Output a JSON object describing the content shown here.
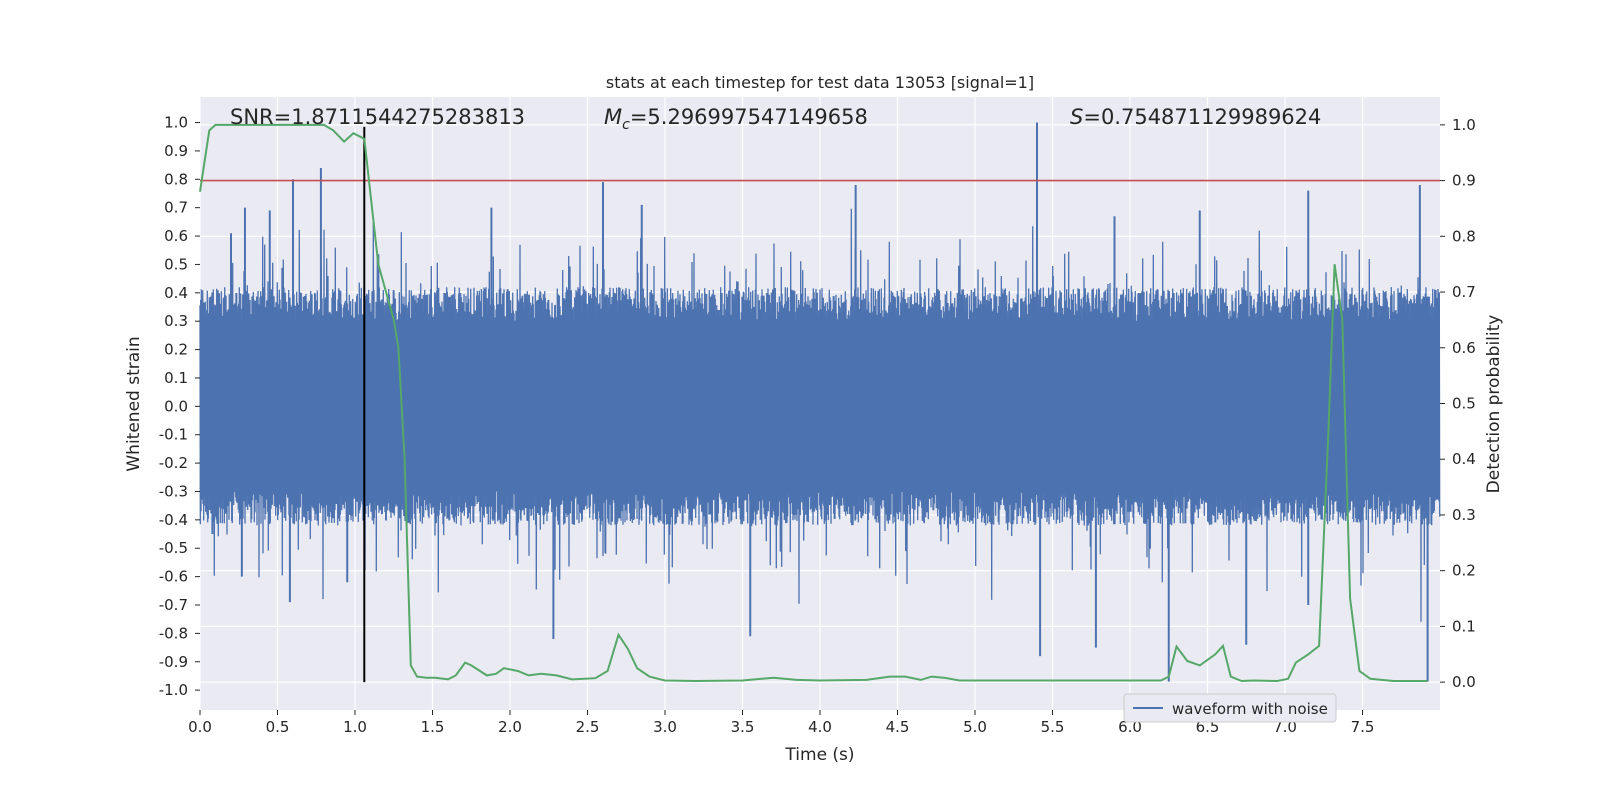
{
  "chart_data": {
    "type": "line",
    "title": "stats at each timestep for test data 13053 [signal=1]",
    "xlabel": "Time (s)",
    "ylabel_left": "Whitened strain",
    "ylabel_right": "Detection probability",
    "xlim": [
      0.0,
      8.0
    ],
    "ylim_left": [
      -1.07,
      1.09
    ],
    "ylim_right": [
      -0.05,
      1.05
    ],
    "x_ticks": [
      "0.0",
      "0.5",
      "1.0",
      "1.5",
      "2.0",
      "2.5",
      "3.0",
      "3.5",
      "4.0",
      "4.5",
      "5.0",
      "5.5",
      "6.0",
      "6.5",
      "7.0",
      "7.5"
    ],
    "y_ticks_left": [
      "1.0",
      "0.9",
      "0.8",
      "0.7",
      "0.6",
      "0.5",
      "0.4",
      "0.3",
      "0.2",
      "0.1",
      "0.0",
      "-0.1",
      "-0.2",
      "-0.3",
      "-0.4",
      "-0.5",
      "-0.6",
      "-0.7",
      "-0.8",
      "-0.9",
      "-1.0"
    ],
    "y_ticks_right": [
      "1.0",
      "0.9",
      "0.8",
      "0.7",
      "0.6",
      "0.5",
      "0.4",
      "0.3",
      "0.2",
      "0.1",
      "0.0"
    ],
    "grid": true,
    "legend_position": "lower-right",
    "annotations": {
      "snr": "SNR=1.8711544275283813",
      "mc_symbol": "M",
      "mc_subscript": "c",
      "mc_value": "=5.296997547149658",
      "s_symbol": "S",
      "s_value": "=0.754871129989624"
    },
    "threshold": {
      "value": 0.9,
      "axis": "right",
      "color": "#c44e52"
    },
    "marker_time": {
      "x": 1.06,
      "color": "#000000"
    },
    "series": [
      {
        "name": "waveform with noise",
        "axis": "left",
        "color": "#4c72b0",
        "style": "noise-band",
        "band_core": 0.3,
        "spikes": [
          [
            0.2,
            0.61
          ],
          [
            0.29,
            0.7
          ],
          [
            0.45,
            0.69
          ],
          [
            0.6,
            0.8
          ],
          [
            0.78,
            0.84
          ],
          [
            1.88,
            0.7
          ],
          [
            2.6,
            0.79
          ],
          [
            2.85,
            0.71
          ],
          [
            4.23,
            0.78
          ],
          [
            5.4,
            1.0
          ],
          [
            5.9,
            0.67
          ],
          [
            6.45,
            0.69
          ],
          [
            7.15,
            0.76
          ],
          [
            7.87,
            0.78
          ],
          [
            0.08,
            -0.45
          ],
          [
            0.27,
            -0.6
          ],
          [
            0.58,
            -0.69
          ],
          [
            0.95,
            -0.62
          ],
          [
            2.28,
            -0.82
          ],
          [
            3.55,
            -0.81
          ],
          [
            5.42,
            -0.88
          ],
          [
            5.78,
            -0.85
          ],
          [
            6.25,
            -0.97
          ],
          [
            6.75,
            -0.84
          ],
          [
            7.15,
            -0.7
          ],
          [
            7.92,
            -0.97
          ]
        ]
      },
      {
        "name": "",
        "axis": "right",
        "color": "#55a868",
        "x": [
          0.0,
          0.06,
          0.1,
          0.3,
          0.5,
          0.7,
          0.8,
          0.86,
          0.93,
          0.99,
          1.06,
          1.15,
          1.2,
          1.25,
          1.28,
          1.32,
          1.36,
          1.4,
          1.46,
          1.52,
          1.6,
          1.65,
          1.71,
          1.75,
          1.85,
          1.91,
          1.96,
          2.05,
          2.12,
          2.2,
          2.3,
          2.4,
          2.55,
          2.63,
          2.7,
          2.76,
          2.82,
          2.9,
          3.0,
          3.2,
          3.5,
          3.7,
          3.85,
          4.0,
          4.3,
          4.45,
          4.55,
          4.65,
          4.72,
          4.8,
          4.9,
          5.0,
          5.3,
          5.7,
          5.95,
          6.2,
          6.25,
          6.3,
          6.37,
          6.45,
          6.55,
          6.6,
          6.65,
          6.72,
          6.8,
          6.95,
          7.02,
          7.07,
          7.15,
          7.22,
          7.28,
          7.32,
          7.37,
          7.42,
          7.48,
          7.55,
          7.7,
          7.92
        ],
        "values": [
          0.88,
          0.99,
          1.0,
          1.0,
          1.0,
          1.0,
          1.0,
          0.99,
          0.97,
          0.985,
          0.975,
          0.75,
          0.7,
          0.65,
          0.6,
          0.4,
          0.03,
          0.01,
          0.008,
          0.008,
          0.005,
          0.012,
          0.035,
          0.03,
          0.012,
          0.015,
          0.025,
          0.02,
          0.012,
          0.015,
          0.012,
          0.005,
          0.007,
          0.02,
          0.085,
          0.06,
          0.025,
          0.01,
          0.003,
          0.002,
          0.003,
          0.008,
          0.004,
          0.003,
          0.004,
          0.01,
          0.01,
          0.004,
          0.01,
          0.008,
          0.003,
          0.003,
          0.003,
          0.003,
          0.003,
          0.003,
          0.01,
          0.064,
          0.038,
          0.03,
          0.05,
          0.065,
          0.01,
          0.002,
          0.003,
          0.002,
          0.006,
          0.035,
          0.05,
          0.065,
          0.45,
          0.75,
          0.65,
          0.15,
          0.02,
          0.006,
          0.002,
          0.002
        ]
      }
    ]
  }
}
